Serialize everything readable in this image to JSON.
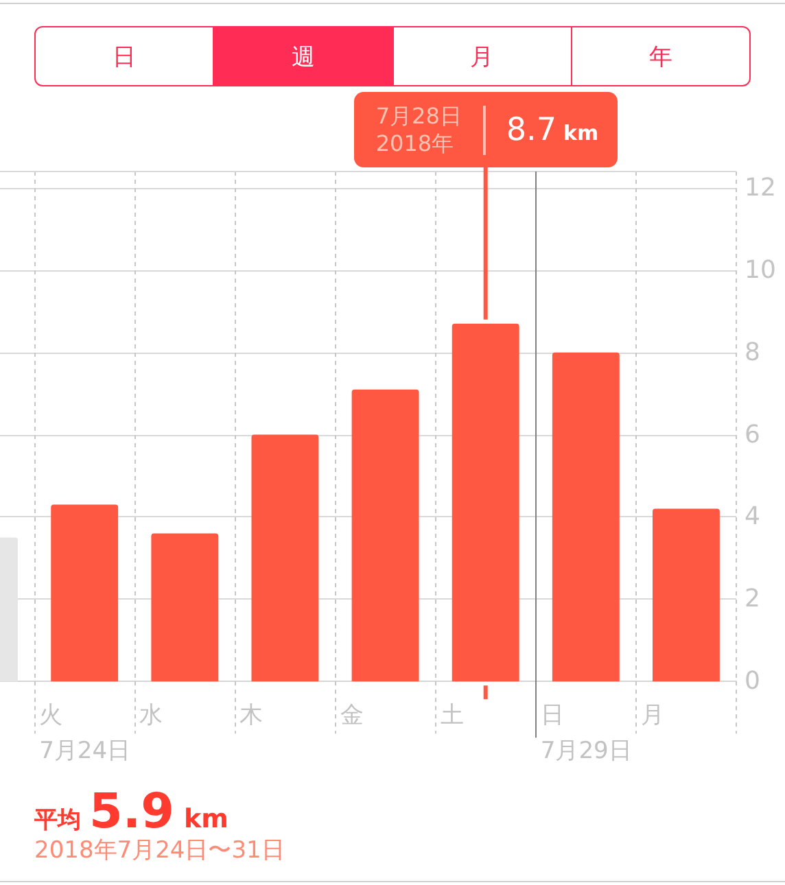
{
  "chart_data": {
    "type": "bar",
    "categories": [
      null,
      "火\n7月24日",
      "水",
      "木",
      "金",
      "土",
      "日\n7月29日",
      "月"
    ],
    "values": [
      3.5,
      4.3,
      3.6,
      6.0,
      7.1,
      8.7,
      8.0,
      4.2
    ],
    "colors": [
      "#e6e6e6",
      "#ff5842",
      "#ff5842",
      "#ff5842",
      "#ff5842",
      "#ff5842",
      "#ff5842",
      "#ff5842"
    ],
    "value_labels": [
      null,
      null,
      null,
      null,
      null,
      "8.7 km",
      null,
      null
    ],
    "ylim": [
      0,
      12.4
    ],
    "yticks": [
      0,
      2,
      4,
      6,
      8,
      10,
      12
    ],
    "grid": true,
    "ref_lines": [
      {
        "axis": "x",
        "value": "日\n7月29日",
        "color": "#808080"
      }
    ],
    "annotations": [
      "日",
      "週",
      "月",
      "年",
      "7月28日\n2018年",
      "平均 5.9 km",
      "2018年7月24日〜31日"
    ]
  }
}
